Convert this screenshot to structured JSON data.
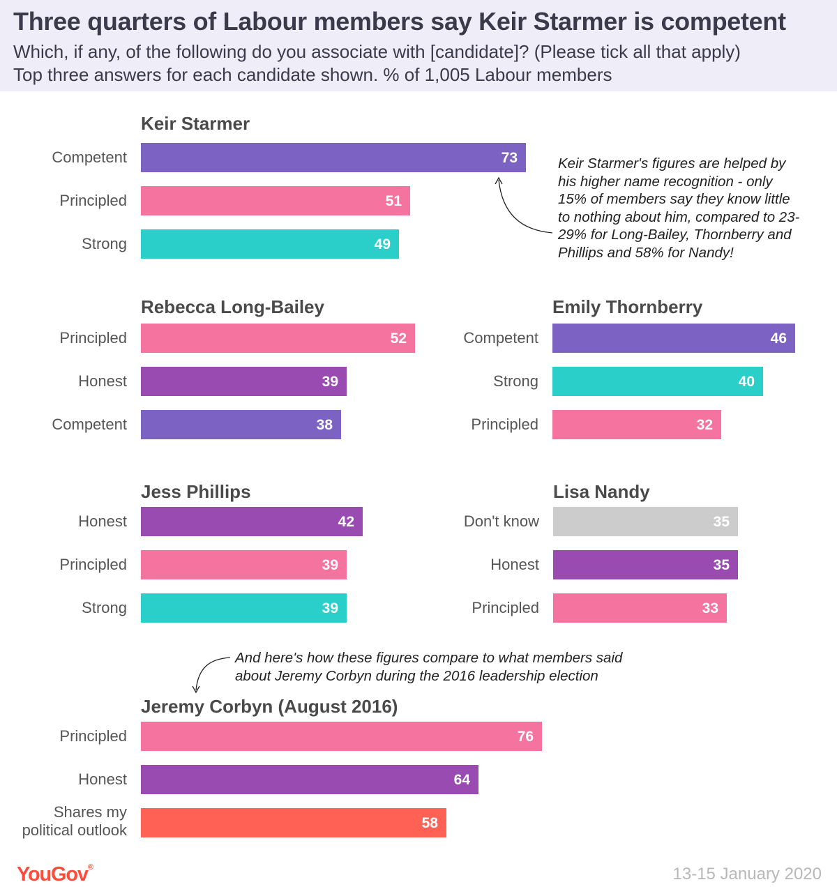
{
  "header": {
    "title": "Three quarters of Labour members say Keir Starmer is competent",
    "subtitle_line1": "Which, if any, of the following do you associate with [candidate]? (Please tick all that apply)",
    "subtitle_line2": "Top three answers for each candidate shown. % of 1,005 Labour members"
  },
  "colors": {
    "Competent": "#7c62c2",
    "Principled": "#f4739f",
    "Strong": "#2bcfc9",
    "Honest": "#9a4bb2",
    "Don't know": "#cccccc",
    "Shares my political outlook": "#ff6254"
  },
  "chart_data": {
    "type": "bar",
    "orientation": "horizontal",
    "value_unit": "% of 1,005 Labour members",
    "panels": [
      {
        "title": "Keir Starmer",
        "categories": [
          "Competent",
          "Principled",
          "Strong"
        ],
        "values": [
          73,
          51,
          49
        ]
      },
      {
        "title": "Rebecca Long-Bailey",
        "categories": [
          "Principled",
          "Honest",
          "Competent"
        ],
        "values": [
          52,
          39,
          38
        ]
      },
      {
        "title": "Emily Thornberry",
        "categories": [
          "Competent",
          "Strong",
          "Principled"
        ],
        "values": [
          46,
          40,
          32
        ]
      },
      {
        "title": "Jess Phillips",
        "categories": [
          "Honest",
          "Principled",
          "Strong"
        ],
        "values": [
          42,
          39,
          39
        ]
      },
      {
        "title": "Lisa Nandy",
        "categories": [
          "Don't know",
          "Honest",
          "Principled"
        ],
        "values": [
          35,
          35,
          33
        ]
      },
      {
        "title": "Jeremy Corbyn (August 2016)",
        "categories": [
          "Principled",
          "Honest",
          "Shares my political outlook"
        ],
        "values": [
          76,
          64,
          58
        ]
      }
    ]
  },
  "annotations": {
    "starmer_note": "Keir Starmer's figures are helped by his higher name recognition - only 15% of members say they know little to nothing about him, compared to 23-29% for Long-Bailey, Thornberry and Phillips and 58% for Nandy!",
    "corbyn_note": "And here's how these figures compare to what members said about Jeremy Corbyn during the 2016 leadership election"
  },
  "footer": {
    "logo": "YouGov",
    "date": "13-15 January 2020"
  }
}
